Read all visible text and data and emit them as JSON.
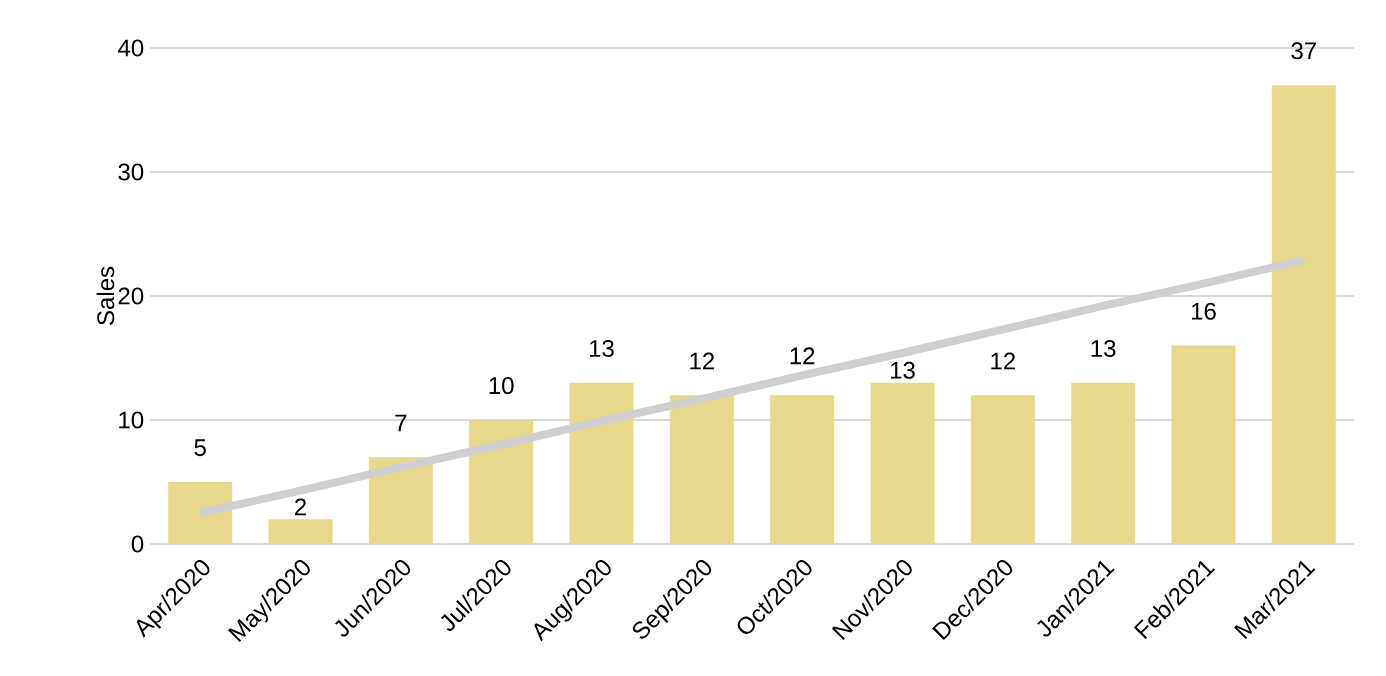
{
  "chart_data": {
    "type": "bar",
    "ylabel": "Sales",
    "categories": [
      "Apr/2020",
      "May/2020",
      "Jun/2020",
      "Jul/2020",
      "Aug/2020",
      "Sep/2020",
      "Oct/2020",
      "Nov/2020",
      "Dec/2020",
      "Jan/2021",
      "Feb/2021",
      "Mar/2021"
    ],
    "series": [
      {
        "color": "#e8d88c",
        "values": [
          5,
          2,
          7,
          10,
          13,
          12,
          12,
          13,
          12,
          13,
          16,
          37
        ],
        "value_labels": [
          "5",
          "2",
          "7",
          "10",
          "13",
          "12",
          "12",
          "13",
          "12",
          "13",
          "16",
          "37"
        ]
      },
      {
        "type": "line",
        "color": "#cfcfcf",
        "values": [
          2.5,
          4.3,
          6.2,
          8.0,
          9.9,
          11.7,
          13.6,
          15.4,
          17.3,
          19.2,
          21.0,
          22.9
        ]
      }
    ],
    "ylim": [
      0,
      40
    ],
    "yticks": [
      0,
      10,
      20,
      30,
      40
    ],
    "grid": "y"
  }
}
